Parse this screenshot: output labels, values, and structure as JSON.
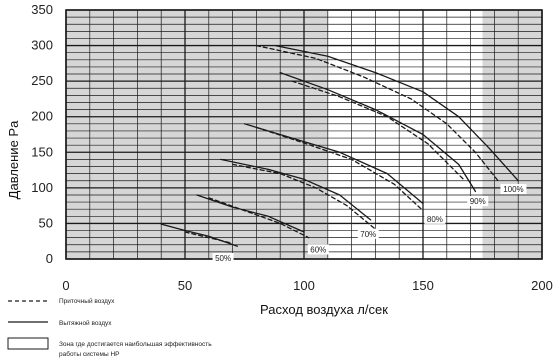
{
  "chart_data": {
    "type": "line",
    "xlabel": "Расход воздуха л/сек",
    "ylabel": "Давление Pa",
    "xlim": [
      0,
      200
    ],
    "ylim": [
      0,
      350
    ],
    "x_ticks": [
      "0",
      "50",
      "100",
      "150",
      "200"
    ],
    "y_ticks": [
      "0",
      "50",
      "100",
      "150",
      "200",
      "250",
      "300",
      "350"
    ],
    "grid": true,
    "shaded_zones": [
      {
        "x_from": 0,
        "x_to": 110
      },
      {
        "x_from": 175,
        "x_to": 200
      }
    ],
    "efficient_zone": {
      "x_from": 110,
      "x_to": 175
    },
    "series": [
      {
        "label": "50%",
        "kind": "exhaust",
        "points": [
          [
            40,
            49
          ],
          [
            50,
            40
          ],
          [
            60,
            32
          ],
          [
            72,
            18
          ]
        ]
      },
      {
        "label": "50%",
        "kind": "supply",
        "points": [
          [
            50,
            38
          ],
          [
            60,
            30
          ],
          [
            70,
            22
          ]
        ]
      },
      {
        "label": "60%",
        "kind": "exhaust",
        "points": [
          [
            55,
            90
          ],
          [
            70,
            73
          ],
          [
            85,
            60
          ],
          [
            100,
            38
          ]
        ]
      },
      {
        "label": "60%",
        "kind": "supply",
        "points": [
          [
            60,
            86
          ],
          [
            75,
            68
          ],
          [
            90,
            50
          ],
          [
            102,
            30
          ]
        ]
      },
      {
        "label": "70%",
        "kind": "exhaust",
        "points": [
          [
            65,
            140
          ],
          [
            85,
            126
          ],
          [
            100,
            112
          ],
          [
            115,
            90
          ],
          [
            128,
            55
          ]
        ]
      },
      {
        "label": "70%",
        "kind": "supply",
        "points": [
          [
            70,
            133
          ],
          [
            90,
            120
          ],
          [
            105,
            100
          ],
          [
            118,
            75
          ],
          [
            130,
            42
          ]
        ]
      },
      {
        "label": "80%",
        "kind": "exhaust",
        "points": [
          [
            75,
            190
          ],
          [
            95,
            170
          ],
          [
            115,
            150
          ],
          [
            135,
            120
          ],
          [
            150,
            78
          ]
        ]
      },
      {
        "label": "80%",
        "kind": "supply",
        "points": [
          [
            80,
            185
          ],
          [
            100,
            163
          ],
          [
            120,
            140
          ],
          [
            138,
            105
          ],
          [
            150,
            68
          ]
        ]
      },
      {
        "label": "90%",
        "kind": "exhaust",
        "points": [
          [
            90,
            262
          ],
          [
            110,
            238
          ],
          [
            130,
            210
          ],
          [
            150,
            175
          ],
          [
            165,
            133
          ],
          [
            172,
            95
          ]
        ]
      },
      {
        "label": "90%",
        "kind": "supply",
        "points": [
          [
            95,
            250
          ],
          [
            115,
            228
          ],
          [
            135,
            200
          ],
          [
            152,
            162
          ],
          [
            167,
            112
          ]
        ]
      },
      {
        "label": "100%",
        "kind": "exhaust",
        "points": [
          [
            88,
            300
          ],
          [
            110,
            285
          ],
          [
            130,
            262
          ],
          [
            150,
            235
          ],
          [
            165,
            200
          ],
          [
            178,
            155
          ],
          [
            190,
            110
          ]
        ]
      },
      {
        "label": "100%",
        "kind": "supply",
        "points": [
          [
            80,
            300
          ],
          [
            105,
            282
          ],
          [
            125,
            256
          ],
          [
            145,
            225
          ],
          [
            160,
            190
          ],
          [
            172,
            150
          ],
          [
            182,
            108
          ]
        ]
      }
    ],
    "pct_labels": [
      {
        "text": "50%",
        "x": 66,
        "y": 0
      },
      {
        "text": "60%",
        "x": 106,
        "y": 12
      },
      {
        "text": "70%",
        "x": 127,
        "y": 34
      },
      {
        "text": "80%",
        "x": 155,
        "y": 55
      },
      {
        "text": "90%",
        "x": 173,
        "y": 80
      },
      {
        "text": "100%",
        "x": 188,
        "y": 97
      }
    ]
  },
  "legend": {
    "supply_label": "Приточный воздух",
    "exhaust_label": "Вытяжной воздух",
    "zone_label_line1": "Зона где достигается наибольшая эффективность",
    "zone_label_line2": "работы системы НР"
  },
  "colors": {
    "shade": "#d6d6d6",
    "grid": "#1a1a1a",
    "line": "#1a1a1a"
  }
}
